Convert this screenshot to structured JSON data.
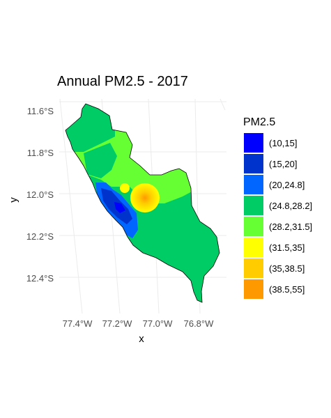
{
  "map": {
    "title": "Annual PM2.5 - 2017",
    "x_label": "x",
    "y_label": "y",
    "lat_ticks": [
      "11.6°S",
      "11.8°S",
      "12.0°S",
      "12.2°S",
      "12.4°S"
    ],
    "lon_ticks": [
      "77.4°W",
      "77.2°W",
      "77.0°W",
      "76.8°W"
    ],
    "background": "#ffffff",
    "grid_color": "#ebebeb"
  },
  "legend": {
    "title": "PM2.5",
    "items": [
      {
        "label": "(10,15]",
        "color": "#0000ff"
      },
      {
        "label": "(15,20]",
        "color": "#0033cc"
      },
      {
        "label": "(20,24.8]",
        "color": "#0066ff"
      },
      {
        "label": "(24.8,28.2]",
        "color": "#00cc66"
      },
      {
        "label": "(28.2,31.5]",
        "color": "#66ff33"
      },
      {
        "label": "(31.5,35]",
        "color": "#ffff00"
      },
      {
        "label": "(35,38.5]",
        "color": "#ffcc00"
      },
      {
        "label": "(38.5,55]",
        "color": "#ff9900"
      }
    ]
  }
}
